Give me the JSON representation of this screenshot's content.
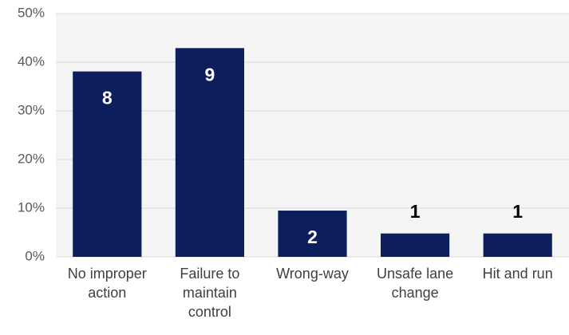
{
  "chart_data": {
    "type": "bar",
    "categories": [
      "No improper action",
      "Failure to maintain control",
      "Wrong-way",
      "Unsafe lane change",
      "Hit and run"
    ],
    "values": [
      38.1,
      42.9,
      9.5,
      4.8,
      4.8
    ],
    "data_labels": [
      8,
      9,
      2,
      1,
      1
    ],
    "color": "#0c1f5c",
    "ylim": [
      0,
      50
    ],
    "yticks": [
      {
        "value": 0,
        "label": "0%"
      },
      {
        "value": 10,
        "label": "10%"
      },
      {
        "value": 20,
        "label": "20%"
      },
      {
        "value": 30,
        "label": "30%"
      },
      {
        "value": 40,
        "label": "40%"
      },
      {
        "value": 50,
        "label": "50%"
      }
    ],
    "grid": true
  }
}
